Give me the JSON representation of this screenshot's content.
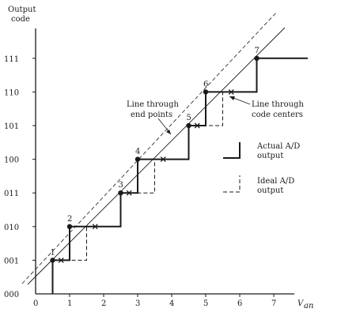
{
  "axes": {
    "y_title_line1": "Output",
    "y_title_line2": "code",
    "x_title": "V",
    "x_title_sub": "an",
    "y_ticks": [
      "000",
      "001",
      "010",
      "011",
      "100",
      "101",
      "110",
      "111"
    ],
    "x_ticks": [
      "0",
      "1",
      "2",
      "3",
      "4",
      "5",
      "6",
      "7"
    ]
  },
  "points": [
    {
      "label": "1",
      "x": 0.5,
      "y": 1
    },
    {
      "label": "2",
      "x": 1,
      "y": 2
    },
    {
      "label": "3",
      "x": 2.5,
      "y": 3
    },
    {
      "label": "4",
      "x": 3,
      "y": 4
    },
    {
      "label": "5",
      "x": 4.5,
      "y": 5
    },
    {
      "label": "6",
      "x": 5,
      "y": 6
    },
    {
      "label": "7",
      "x": 6.5,
      "y": 7
    }
  ],
  "code_centers": [
    {
      "x": 0.75,
      "y": 1
    },
    {
      "x": 1.75,
      "y": 2
    },
    {
      "x": 2.75,
      "y": 3
    },
    {
      "x": 3.75,
      "y": 4
    },
    {
      "x": 4.75,
      "y": 5
    },
    {
      "x": 5.75,
      "y": 6
    }
  ],
  "actual_output": [
    [
      0.5,
      0
    ],
    [
      0.5,
      1
    ],
    [
      1,
      1
    ],
    [
      1,
      2
    ],
    [
      2.5,
      2
    ],
    [
      2.5,
      3
    ],
    [
      3,
      3
    ],
    [
      3,
      4
    ],
    [
      4.5,
      4
    ],
    [
      4.5,
      5
    ],
    [
      5,
      5
    ],
    [
      5,
      6
    ],
    [
      6.5,
      6
    ],
    [
      6.5,
      7
    ],
    [
      8,
      7
    ]
  ],
  "ideal_output": [
    [
      0.5,
      1
    ],
    [
      1.5,
      1
    ],
    [
      1.5,
      2
    ],
    [
      2.5,
      2
    ],
    [
      2.5,
      3
    ],
    [
      3.5,
      3
    ],
    [
      3.5,
      4
    ],
    [
      4.5,
      4
    ],
    [
      4.5,
      5
    ],
    [
      5.5,
      5
    ],
    [
      5.5,
      6
    ],
    [
      6.5,
      6
    ]
  ],
  "annotations": {
    "line_end_points_1": "Line through",
    "line_end_points_2": "end points",
    "line_code_centers_1": "Line through",
    "line_code_centers_2": "code centers"
  },
  "legend": {
    "actual_1": "Actual A/D",
    "actual_2": "output",
    "ideal_1": "Ideal A/D",
    "ideal_2": "output"
  },
  "colors": {
    "ink": "#1a1a1a"
  }
}
